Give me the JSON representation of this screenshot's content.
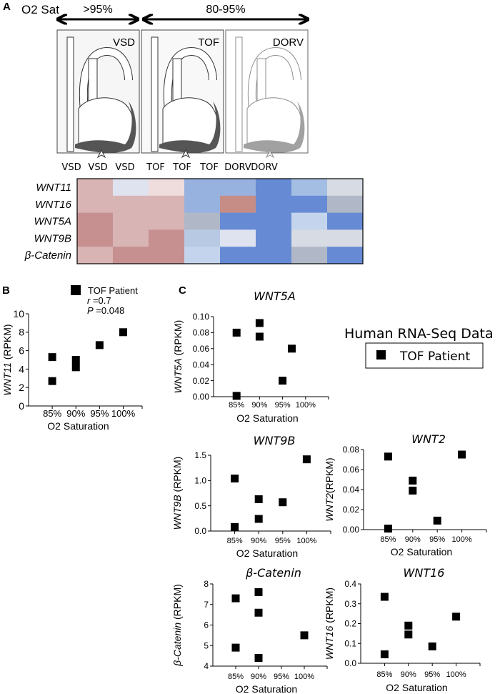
{
  "panel_a": {
    "letter": "A",
    "o2_label": "O2 Sat",
    "range_high": ">95%",
    "range_low": "80-95%",
    "diagrams": [
      {
        "label": "VSD"
      },
      {
        "label": "TOF"
      },
      {
        "label": "DORV"
      }
    ],
    "columns": [
      "VSD",
      "VSD",
      "VSD",
      "TOF",
      "TOF",
      "TOF",
      "DORV",
      "DORV"
    ]
  },
  "heatmap": {
    "type": "heatmap",
    "rows": [
      "WNT11",
      "WNT16",
      "WNT5A",
      "WNT9B",
      "β-Catenin"
    ],
    "columns": [
      "VSD",
      "VSD",
      "VSD",
      "TOF",
      "TOF",
      "TOF",
      "DORV",
      "DORV"
    ],
    "cell_colors": [
      [
        "#d8b4b4",
        "#dfe3ef",
        "#efdcdc",
        "#98b2e0",
        "#98b2e0",
        "#668bd4",
        "#a4bee3",
        "#d6dbe4"
      ],
      [
        "#d8b4b4",
        "#d8b4b4",
        "#d8b4b4",
        "#98b2e0",
        "#c68c86",
        "#668bd4",
        "#668bd4",
        "#b0b8c8"
      ],
      [
        "#c79090",
        "#d8b4b4",
        "#d8b4b4",
        "#b0b8c8",
        "#668bd4",
        "#668bd4",
        "#c4d4ec",
        "#668bd4"
      ],
      [
        "#c79090",
        "#d8b4b4",
        "#c79090",
        "#b8c9e4",
        "#dfe3ef",
        "#668bd4",
        "#d6dbe4",
        "#d6dbe4"
      ],
      [
        "#d8b4b4",
        "#c79090",
        "#c79090",
        "#c4d4ec",
        "#668bd4",
        "#668bd4",
        "#b0b8c8",
        "#668bd4"
      ]
    ]
  },
  "panel_b": {
    "letter": "B",
    "legend": "TOF  Patient",
    "r_label": "r",
    "r_value": " =0.7",
    "p_label": "P",
    "p_value": " =0.048"
  },
  "panel_c": {
    "letter": "C",
    "legend_title": "Human RNA-Seq Data",
    "legend_entry": "TOF Patient"
  },
  "chart_data": [
    {
      "type": "scatter",
      "title": "",
      "ylabel_gene": "WNT11",
      "ylabel_unit": " (RPKM)",
      "xlabel": "O2 Saturation",
      "xlim": [
        80,
        104
      ],
      "ylim": [
        0,
        10
      ],
      "xticks": [
        "85%",
        "90%",
        "95%",
        "100%"
      ],
      "xtick_values": [
        85,
        90,
        95,
        100
      ],
      "yticks": [
        "0",
        "2",
        "4",
        "6",
        "8",
        "10"
      ],
      "ytick_values": [
        0,
        2,
        4,
        6,
        8,
        10
      ],
      "series": [
        {
          "name": "TOF  Patient",
          "x": [
            85,
            85,
            90,
            90,
            95,
            100
          ],
          "y": [
            5.3,
            2.7,
            5.0,
            4.2,
            6.6,
            8.0
          ]
        }
      ]
    },
    {
      "type": "scatter",
      "title": "WNT5A",
      "ylabel_gene": "WNT5A",
      "ylabel_unit": " (RPKM)",
      "xlabel": "O2  Saturation",
      "xlim": [
        80,
        105
      ],
      "ylim": [
        0,
        0.1
      ],
      "xticks": [
        "85%",
        "90%",
        "95%",
        "100%"
      ],
      "xtick_values": [
        85,
        90,
        95,
        100
      ],
      "yticks": [
        "0.00",
        "0.02",
        "0.04",
        "0.06",
        "0.08",
        "0.10"
      ],
      "ytick_values": [
        0,
        0.02,
        0.04,
        0.06,
        0.08,
        0.1
      ],
      "series": [
        {
          "x": [
            85,
            85,
            90,
            90,
            95,
            97
          ],
          "y": [
            0.08,
            0.001,
            0.092,
            0.075,
            0.02,
            0.06
          ]
        }
      ]
    },
    {
      "type": "scatter",
      "title": "WNT9B",
      "ylabel_gene": "WNT9B",
      "ylabel_unit": " (RPKM)",
      "xlabel": "O2  Saturation",
      "xlim": [
        80,
        105
      ],
      "ylim": [
        0,
        1.5
      ],
      "xticks": [
        "85%",
        "90%",
        "95%",
        "100%"
      ],
      "xtick_values": [
        85,
        90,
        95,
        100
      ],
      "yticks": [
        "0.0",
        "0.5",
        "1.0",
        "1.5"
      ],
      "ytick_values": [
        0,
        0.5,
        1.0,
        1.5
      ],
      "series": [
        {
          "x": [
            85,
            85,
            90,
            90,
            95,
            100
          ],
          "y": [
            1.04,
            0.08,
            0.63,
            0.24,
            0.57,
            1.42
          ]
        }
      ]
    },
    {
      "type": "scatter",
      "title": "WNT2",
      "ylabel_gene": "WNT2",
      "ylabel_unit": "(RPKM)",
      "xlabel": "O2  Saturation",
      "xlim": [
        80,
        105
      ],
      "ylim": [
        0,
        0.08
      ],
      "xticks": [
        "85%",
        "90%",
        "95%",
        "100%"
      ],
      "xtick_values": [
        85,
        90,
        95,
        100
      ],
      "yticks": [
        "0.00",
        "0.02",
        "0.04",
        "0.06",
        "0.08"
      ],
      "ytick_values": [
        0,
        0.02,
        0.04,
        0.06,
        0.08
      ],
      "series": [
        {
          "x": [
            85,
            85,
            90,
            90,
            95,
            100
          ],
          "y": [
            0.073,
            0.001,
            0.049,
            0.039,
            0.009,
            0.075
          ]
        }
      ]
    },
    {
      "type": "scatter",
      "title": "β-Catenin",
      "ylabel_gene": "β-Catenin",
      "ylabel_unit": " (RPKM)",
      "xlabel": "O2  Saturation",
      "xlim": [
        80,
        105
      ],
      "ylim": [
        4,
        8
      ],
      "xticks": [
        "85%",
        "90%",
        "95%",
        "100%"
      ],
      "xtick_values": [
        85,
        90,
        95,
        100
      ],
      "yticks": [
        "4",
        "5",
        "6",
        "7",
        "8"
      ],
      "ytick_values": [
        4,
        5,
        6,
        7,
        8
      ],
      "series": [
        {
          "x": [
            85,
            85,
            90,
            90,
            90,
            100
          ],
          "y": [
            7.3,
            4.9,
            7.6,
            6.6,
            4.4,
            5.5
          ]
        }
      ]
    },
    {
      "type": "scatter",
      "title": "WNT16",
      "ylabel_gene": "WNT16",
      "ylabel_unit": " (RPKM)",
      "xlabel": "O2  Saturation",
      "xlim": [
        80,
        105
      ],
      "ylim": [
        0,
        0.4
      ],
      "xticks": [
        "85%",
        "90%",
        "95%",
        "100%"
      ],
      "xtick_values": [
        85,
        90,
        95,
        100
      ],
      "yticks": [
        "0.0",
        "0.1",
        "0.2",
        "0.3",
        "0.4"
      ],
      "ytick_values": [
        0,
        0.1,
        0.2,
        0.3,
        0.4
      ],
      "series": [
        {
          "x": [
            85,
            85,
            90,
            90,
            95,
            100
          ],
          "y": [
            0.335,
            0.045,
            0.19,
            0.145,
            0.085,
            0.235
          ]
        }
      ]
    }
  ]
}
